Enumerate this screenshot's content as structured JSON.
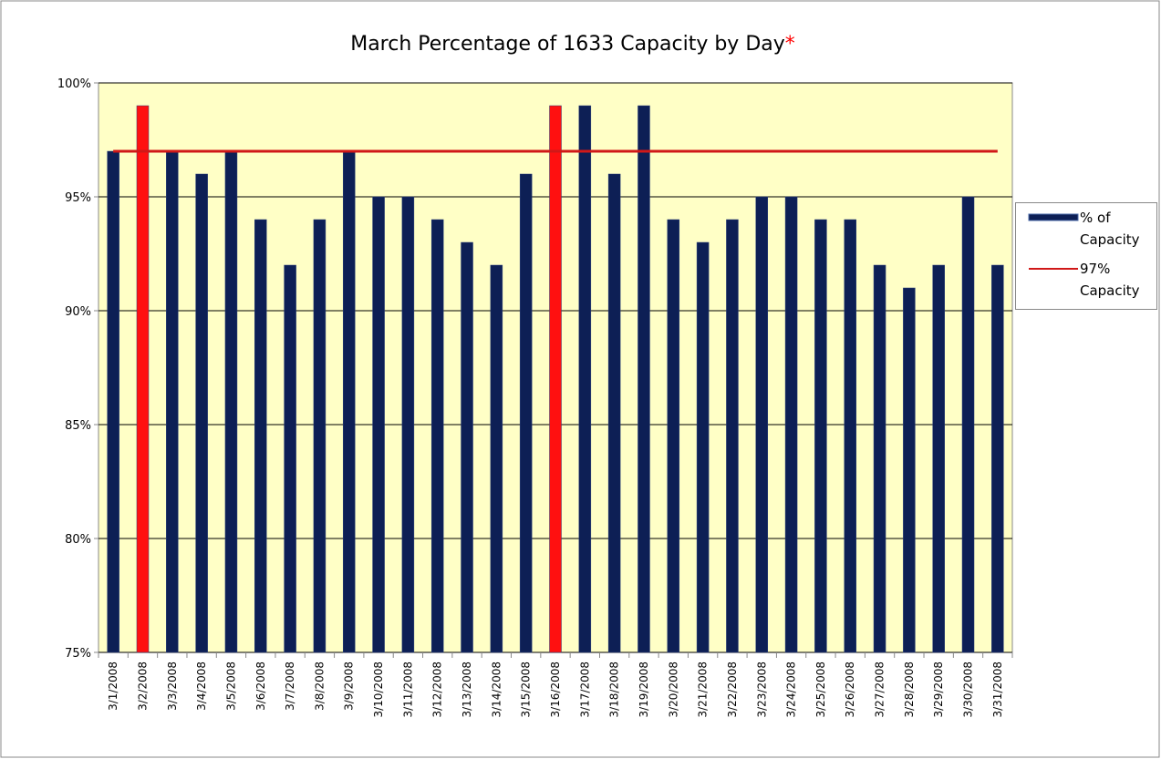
{
  "chart_data": {
    "type": "bar",
    "title": "March Percentage of 1633 Capacity by Day",
    "title_mark": "*",
    "categories": [
      "3/1/2008",
      "3/2/2008",
      "3/3/2008",
      "3/4/2008",
      "3/5/2008",
      "3/6/2008",
      "3/7/2008",
      "3/8/2008",
      "3/9/2008",
      "3/10/2008",
      "3/11/2008",
      "3/12/2008",
      "3/13/2008",
      "3/14/2008",
      "3/15/2008",
      "3/16/2008",
      "3/17/2008",
      "3/18/2008",
      "3/19/2008",
      "3/20/2008",
      "3/21/2008",
      "3/22/2008",
      "3/23/2008",
      "3/24/2008",
      "3/25/2008",
      "3/26/2008",
      "3/27/2008",
      "3/28/2008",
      "3/29/2008",
      "3/30/2008",
      "3/31/2008"
    ],
    "series": [
      {
        "name": "% of Capacity",
        "type": "bar",
        "color": "#0d1f55",
        "colors": [
          "#0d1f55",
          "#ff1010",
          "#0d1f55",
          "#0d1f55",
          "#0d1f55",
          "#0d1f55",
          "#0d1f55",
          "#0d1f55",
          "#0d1f55",
          "#0d1f55",
          "#0d1f55",
          "#0d1f55",
          "#0d1f55",
          "#0d1f55",
          "#0d1f55",
          "#ff1010",
          "#0d1f55",
          "#0d1f55",
          "#0d1f55",
          "#0d1f55",
          "#0d1f55",
          "#0d1f55",
          "#0d1f55",
          "#0d1f55",
          "#0d1f55",
          "#0d1f55",
          "#0d1f55",
          "#0d1f55",
          "#0d1f55",
          "#0d1f55",
          "#0d1f55"
        ],
        "values": [
          97,
          99,
          97,
          96,
          97,
          94,
          92,
          94,
          97,
          95,
          95,
          94,
          93,
          92,
          96,
          99,
          99,
          96,
          99,
          94,
          93,
          94,
          95,
          95,
          94,
          94,
          92,
          91,
          92,
          95,
          92
        ]
      },
      {
        "name": "97% Capacity",
        "type": "line",
        "color": "#d01818",
        "values": [
          97,
          97,
          97,
          97,
          97,
          97,
          97,
          97,
          97,
          97,
          97,
          97,
          97,
          97,
          97,
          97,
          97,
          97,
          97,
          97,
          97,
          97,
          97,
          97,
          97,
          97,
          97,
          97,
          97,
          97,
          97
        ]
      }
    ],
    "ylim": [
      75,
      100
    ],
    "yticks": [
      {
        "value": 75,
        "label": "75%"
      },
      {
        "value": 80,
        "label": "80%"
      },
      {
        "value": 85,
        "label": "85%"
      },
      {
        "value": 90,
        "label": "90%"
      },
      {
        "value": 95,
        "label": "95%"
      },
      {
        "value": 100,
        "label": "100%"
      }
    ],
    "grid": true,
    "legend": "right"
  }
}
